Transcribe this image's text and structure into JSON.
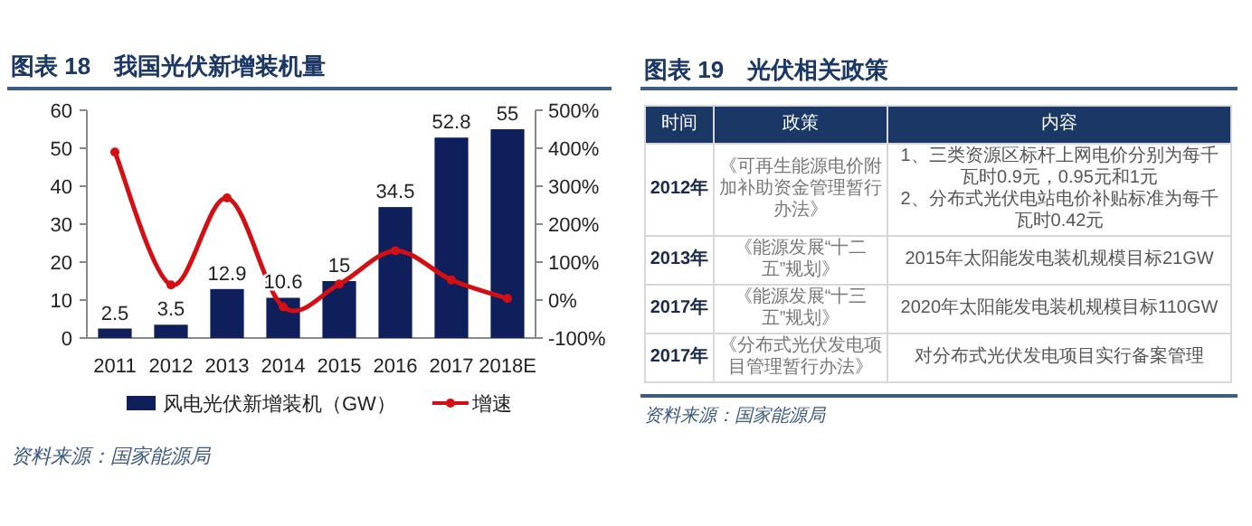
{
  "chart_data": [
    {
      "type": "bar",
      "title": "图表 18　我国光伏新增装机量",
      "categories": [
        "2011",
        "2012",
        "2013",
        "2014",
        "2015",
        "2016",
        "2017",
        "2018E"
      ],
      "series": [
        {
          "name": "风电光伏新增装机（GW）",
          "type": "bar",
          "color": "#0e1f5b",
          "values": [
            2.5,
            3.5,
            12.9,
            10.6,
            15,
            34.5,
            52.8,
            55
          ],
          "value_labels": [
            "2.5",
            "3.5",
            "12.9",
            "10.6",
            "15",
            "34.5",
            "52.8",
            "55"
          ]
        },
        {
          "name": "增速",
          "type": "line",
          "axis": "y2",
          "color": "#d40f14",
          "marker": "circle",
          "values": [
            390,
            40,
            269,
            -18,
            42,
            130,
            53,
            4
          ]
        }
      ],
      "ylim": [
        0,
        60
      ],
      "yticks": [
        0,
        10,
        20,
        30,
        40,
        50,
        60
      ],
      "y2lim": [
        -100,
        500
      ],
      "y2ticks": [
        {
          "value": -100,
          "label": "-100%"
        },
        {
          "value": 0,
          "label": "0%"
        },
        {
          "value": 100,
          "label": "100%"
        },
        {
          "value": 200,
          "label": "200%"
        },
        {
          "value": 300,
          "label": "300%"
        },
        {
          "value": 400,
          "label": "400%"
        },
        {
          "value": 500,
          "label": "500%"
        }
      ],
      "legend": "bottom",
      "annotations": [
        "资料来源：国家能源局"
      ]
    },
    {
      "type": "other",
      "title": "图表 19　光伏相关政策",
      "annotations": [
        "时间",
        "政策",
        "内容",
        "2012年",
        "《可再生能源电价附加补助资金管理暂行办法》",
        "1、三类资源区标杆上网电价分别为每千瓦时0.9元，0.95元和1元\n2、分布式光伏电站电价补贴标准为每千瓦时0.42元",
        "2013年",
        "《能源发展“十二五”规划》",
        "2015年太阳能发电装机规模目标21GW",
        "2017年",
        "《能源发展“十三五”规划》",
        "2020年太阳能发电装机规模目标110GW",
        "2017年",
        "《分布式光伏发电项目管理暂行办法》",
        "对分布式光伏发电项目实行备案管理",
        "资料来源：国家能源局"
      ]
    }
  ]
}
